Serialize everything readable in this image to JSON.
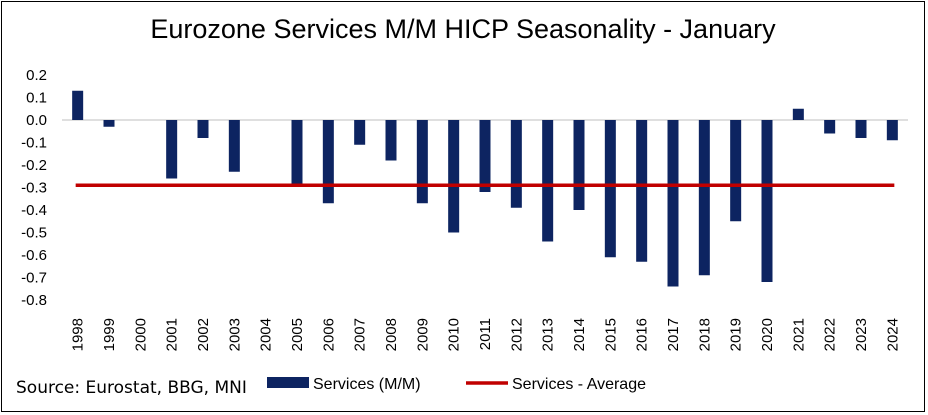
{
  "chart_data": {
    "type": "bar",
    "title": "Eurozone Services M/M HICP Seasonality - January",
    "categories": [
      "1998",
      "1999",
      "2000",
      "2001",
      "2002",
      "2003",
      "2004",
      "2005",
      "2006",
      "2007",
      "2008",
      "2009",
      "2010",
      "2011",
      "2012",
      "2013",
      "2014",
      "2015",
      "2016",
      "2017",
      "2018",
      "2019",
      "2020",
      "2021",
      "2022",
      "2023",
      "2024"
    ],
    "series": [
      {
        "name": "Services (M/M)",
        "color": "#0d2461",
        "values": [
          0.13,
          -0.03,
          0.0,
          -0.26,
          -0.08,
          -0.23,
          0.0,
          -0.29,
          -0.37,
          -0.11,
          -0.18,
          -0.37,
          -0.5,
          -0.32,
          -0.39,
          -0.54,
          -0.4,
          -0.61,
          -0.63,
          -0.74,
          -0.69,
          -0.45,
          -0.72,
          0.05,
          -0.06,
          -0.08,
          -0.09
        ]
      },
      {
        "name": "Services - Average",
        "color": "#c00000",
        "type": "line",
        "value": -0.29
      }
    ],
    "y_ticks": [
      "0.2",
      "0.1",
      "0.0",
      "-0.1",
      "-0.2",
      "-0.3",
      "-0.4",
      "-0.5",
      "-0.6",
      "-0.7",
      "-0.8"
    ],
    "ylim": [
      -0.8,
      0.2
    ],
    "xlabel": "",
    "ylabel": "",
    "legend_position": "bottom"
  },
  "source": "Source: Eurostat, BBG, MNI"
}
